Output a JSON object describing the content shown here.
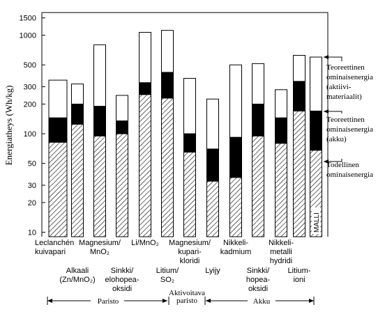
{
  "chart_data": {
    "type": "bar",
    "y_label": "Energiatheys (Wh/kg)",
    "log_scale": true,
    "grid": false,
    "ylim": [
      9,
      1700
    ],
    "yticks": [
      10,
      20,
      30,
      50,
      100,
      200,
      300,
      500,
      1000,
      1500
    ],
    "categories": [
      "Leclanchén\nkuivapari",
      "Alkaali\n(Zn/MnO₂)",
      "Magnesium/\nMnO₂",
      "Sinkki/\nelohopea-\noksidi",
      "Li/MnO₂",
      "Litium/\nSO₂",
      "Magnesium/\nkupari-\nkloridi",
      "Lyijy",
      "Nikkeli-\nkadmium",
      "Sinkki/\nhopea-\noksidi",
      "Nikkeli-\nmetalli\nhydridi",
      "Litium-\nioni",
      "MALLI"
    ],
    "series": [
      {
        "name": "Todellinen\nominaisenergia",
        "fill": "hatch",
        "color": "#000000",
        "values": [
          82,
          125,
          95,
          100,
          250,
          230,
          65,
          33,
          36,
          95,
          80,
          170,
          68
        ]
      },
      {
        "name": "Teoreettinen\nominaisenergia\n(akku)",
        "fill": "solid",
        "color": "#000000",
        "values": [
          145,
          200,
          190,
          135,
          330,
          420,
          100,
          70,
          92,
          200,
          145,
          340,
          170
        ]
      },
      {
        "name": "Teoreettinen\nominaisenergia\n(aktiivi-\nmateriaalit)",
        "fill": "solid",
        "color": "#ffffff",
        "values": [
          350,
          320,
          800,
          245,
          1070,
          1120,
          365,
          225,
          500,
          515,
          280,
          625,
          600
        ]
      }
    ],
    "groups": [
      "Paristo",
      "Aktivoitava\nparisto",
      "Akku"
    ]
  }
}
